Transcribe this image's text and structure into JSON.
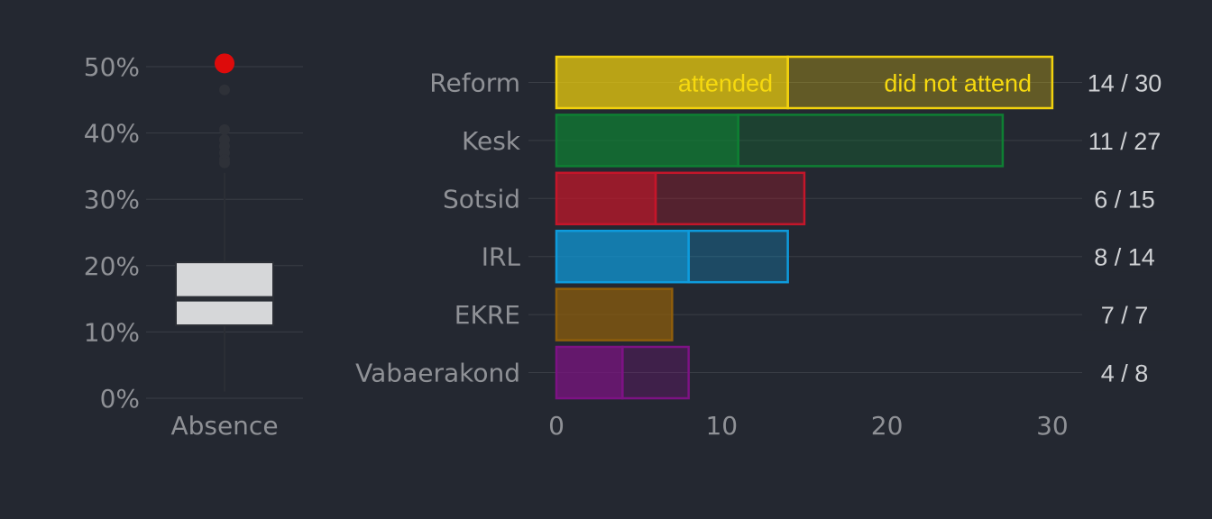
{
  "colors": {
    "background": "#242831",
    "axis_text": "#8f9196",
    "grid": "#3a3e46",
    "box_fill": "#d6d7d9",
    "box_stroke": "#2b2e35",
    "outlier": "#2e3138",
    "highlight": "#dd0b0b",
    "value_label": "#cfd1d4"
  },
  "chart_data": [
    {
      "type": "box",
      "xlabel": "Absence",
      "ylim": [
        0,
        0.5
      ],
      "yticks": [
        0,
        0.1,
        0.2,
        0.3,
        0.4,
        0.5
      ],
      "ytick_labels": [
        "0%",
        "10%",
        "20%",
        "30%",
        "40%",
        "50%"
      ],
      "stats": {
        "min": 0.01,
        "q1": 0.11,
        "median": 0.15,
        "q3": 0.205,
        "whisker_high": 0.34
      },
      "outliers": [
        0.465,
        0.405,
        0.39,
        0.38,
        0.37,
        0.36,
        0.355
      ],
      "highlighted_point": 0.505
    },
    {
      "type": "bar",
      "orientation": "horizontal",
      "stacked": true,
      "xlim": [
        0,
        36
      ],
      "xticks": [
        0,
        10,
        20,
        30
      ],
      "xtick_labels": [
        "0",
        "10",
        "20",
        "30"
      ],
      "categories": [
        "Reform",
        "Kesk",
        "Sotsid",
        "IRL",
        "EKRE",
        "Vabaerakond"
      ],
      "category_colors": [
        "#f2d20d",
        "#0e7f33",
        "#c4162a",
        "#0e9bdc",
        "#8f5e0b",
        "#7d1284"
      ],
      "series": [
        {
          "name": "attended",
          "values": [
            14,
            11,
            6,
            8,
            7,
            4
          ]
        },
        {
          "name": "did not attend",
          "values": [
            16,
            16,
            9,
            6,
            0,
            4
          ]
        }
      ],
      "value_labels": [
        "14 / 30",
        "11 / 27",
        "6 / 15",
        "8 / 14",
        "7 / 7",
        "4 / 8"
      ],
      "legend_color": "#f6d90f"
    }
  ]
}
